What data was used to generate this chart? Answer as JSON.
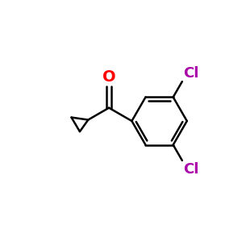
{
  "background_color": "#ffffff",
  "bond_color": "#000000",
  "oxygen_color": "#ff0000",
  "chlorine_color": "#aa00aa",
  "bond_width": 1.8,
  "font_size_atom": 13,
  "fig_width": 3.0,
  "fig_height": 3.0,
  "dpi": 100,
  "xlim": [
    0,
    10
  ],
  "ylim": [
    0,
    10
  ]
}
